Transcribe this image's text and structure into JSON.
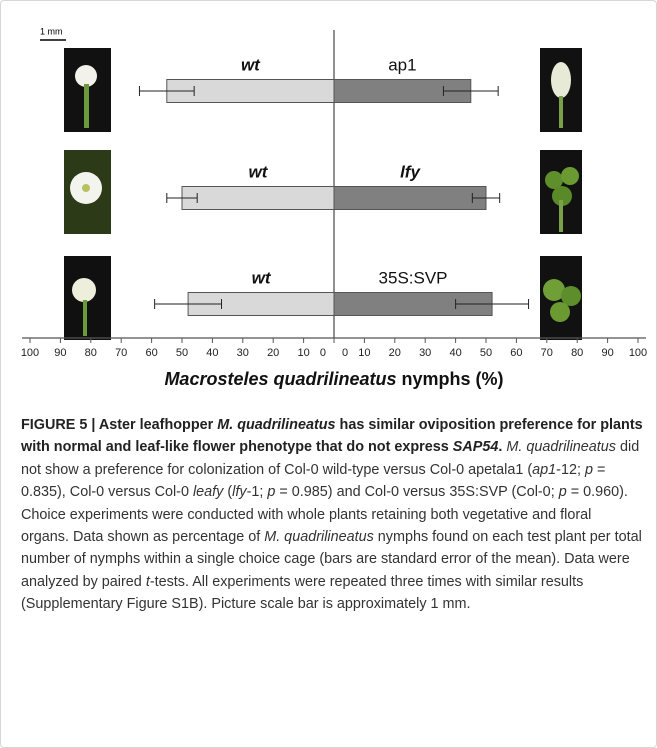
{
  "figure": {
    "scale_bar": "1 mm"
  },
  "chart_data": {
    "type": "diverging-bar",
    "series": [
      {
        "labels": [
          "wt",
          "wt",
          "wt"
        ],
        "values": [
          -55,
          -50,
          -48
        ],
        "errors": [
          9,
          5,
          11
        ],
        "color": "#d9d9d9"
      },
      {
        "labels": [
          "ap1",
          "lfy",
          "35S:SVP"
        ],
        "values": [
          45,
          50,
          52
        ],
        "errors": [
          9,
          4.5,
          12
        ],
        "color": "#808080"
      }
    ],
    "xlim": [
      -100,
      100
    ],
    "xticks": [
      {
        "value": -100,
        "label": "100"
      },
      {
        "value": -90,
        "label": "90"
      },
      {
        "value": -80,
        "label": "80"
      },
      {
        "value": -70,
        "label": "70"
      },
      {
        "value": -60,
        "label": "60"
      },
      {
        "value": -50,
        "label": "50"
      },
      {
        "value": -40,
        "label": "40"
      },
      {
        "value": -30,
        "label": "30"
      },
      {
        "value": -20,
        "label": "20"
      },
      {
        "value": -10,
        "label": "10"
      },
      0,
      0,
      10,
      20,
      30,
      40,
      50,
      60,
      70,
      80,
      90,
      100
    ],
    "xlabel_species": "Macrosteles quadrilineatus",
    "xlabel_unit": "nymphs (%)"
  },
  "caption": {
    "runs": [
      {
        "text": "FIGURE 5 | Aster leafhopper ",
        "style": "b"
      },
      {
        "text": "M. quadrilineatus",
        "style": "bi"
      },
      {
        "text": " has similar oviposition preference for plants with normal and leaf-like flower phenotype that do not express ",
        "style": "b"
      },
      {
        "text": "SAP54",
        "style": "bi"
      },
      {
        "text": ". ",
        "style": "b"
      },
      {
        "text": "M. quadrilineatus",
        "style": "i"
      },
      {
        "text": " did not show a preference for colonization of Col-0 wild-type versus Col-0 apetala1 (",
        "style": "normal"
      },
      {
        "text": "ap1",
        "style": "i"
      },
      {
        "text": "-12; ",
        "style": "normal"
      },
      {
        "text": "p",
        "style": "i"
      },
      {
        "text": " = 0.835), Col-0 versus Col-0 ",
        "style": "normal"
      },
      {
        "text": "leafy",
        "style": "i"
      },
      {
        "text": " (",
        "style": "normal"
      },
      {
        "text": "lfy",
        "style": "i"
      },
      {
        "text": "-1; ",
        "style": "normal"
      },
      {
        "text": "p",
        "style": "i"
      },
      {
        "text": " = 0.985) and Col-0 versus 35S:SVP (Col-0; ",
        "style": "normal"
      },
      {
        "text": "p",
        "style": "i"
      },
      {
        "text": " = 0.960). Choice experiments were conducted with whole plants retaining both vegetative and floral organs. Data shown as percentage of ",
        "style": "normal"
      },
      {
        "text": "M. quadrilineatus",
        "style": "i"
      },
      {
        "text": " nymphs found on each test plant per total number of nymphs within a single choice cage (bars are standard error of the mean). Data were analyzed by paired ",
        "style": "normal"
      },
      {
        "text": "t",
        "style": "i"
      },
      {
        "text": "-tests. All experiments were repeated three times with similar results (Supplementary Figure S1B). Picture scale bar is approximately 1 mm.",
        "style": "normal"
      }
    ]
  }
}
